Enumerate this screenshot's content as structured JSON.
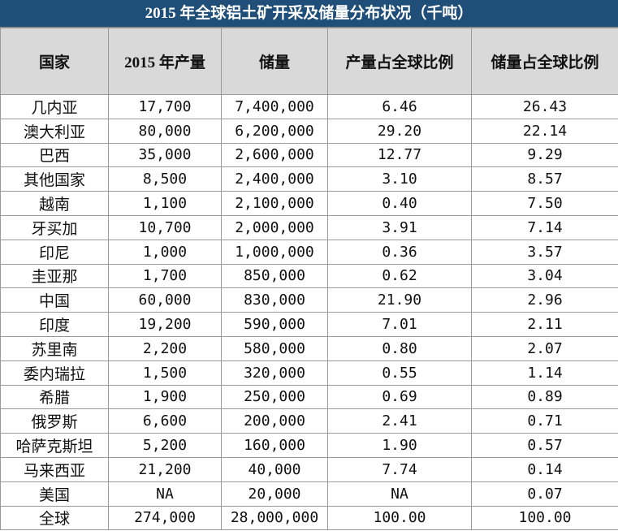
{
  "table": {
    "title": "2015 年全球铝土矿开采及储量分布状况（千吨）",
    "header": [
      "国家",
      "2015 年产量",
      "储量",
      "产量占全球比例",
      "储量占全球比例"
    ],
    "rows": [
      [
        "几内亚",
        "17,700",
        "7,400,000",
        "6.46",
        "26.43"
      ],
      [
        "澳大利亚",
        "80,000",
        "6,200,000",
        "29.20",
        "22.14"
      ],
      [
        "巴西",
        "35,000",
        "2,600,000",
        "12.77",
        "9.29"
      ],
      [
        "其他国家",
        "8,500",
        "2,400,000",
        "3.10",
        "8.57"
      ],
      [
        "越南",
        "1,100",
        "2,100,000",
        "0.40",
        "7.50"
      ],
      [
        "牙买加",
        "10,700",
        "2,000,000",
        "3.91",
        "7.14"
      ],
      [
        "印尼",
        "1,000",
        "1,000,000",
        "0.36",
        "3.57"
      ],
      [
        "圭亚那",
        "1,700",
        "850,000",
        "0.62",
        "3.04"
      ],
      [
        "中国",
        "60,000",
        "830,000",
        "21.90",
        "2.96"
      ],
      [
        "印度",
        "19,200",
        "590,000",
        "7.01",
        "2.11"
      ],
      [
        "苏里南",
        "2,200",
        "580,000",
        "0.80",
        "2.07"
      ],
      [
        "委内瑞拉",
        "1,500",
        "320,000",
        "0.55",
        "1.14"
      ],
      [
        "希腊",
        "1,900",
        "250,000",
        "0.69",
        "0.89"
      ],
      [
        "俄罗斯",
        "6,600",
        "200,000",
        "2.41",
        "0.71"
      ],
      [
        "哈萨克斯坦",
        "5,200",
        "160,000",
        "1.90",
        "0.57"
      ],
      [
        "马来西亚",
        "21,200",
        "40,000",
        "7.74",
        "0.14"
      ],
      [
        "美国",
        "NA",
        "20,000",
        "NA",
        "0.07"
      ],
      [
        "全球",
        "274,000",
        "28,000,000",
        "100.00",
        "100.00"
      ]
    ]
  }
}
